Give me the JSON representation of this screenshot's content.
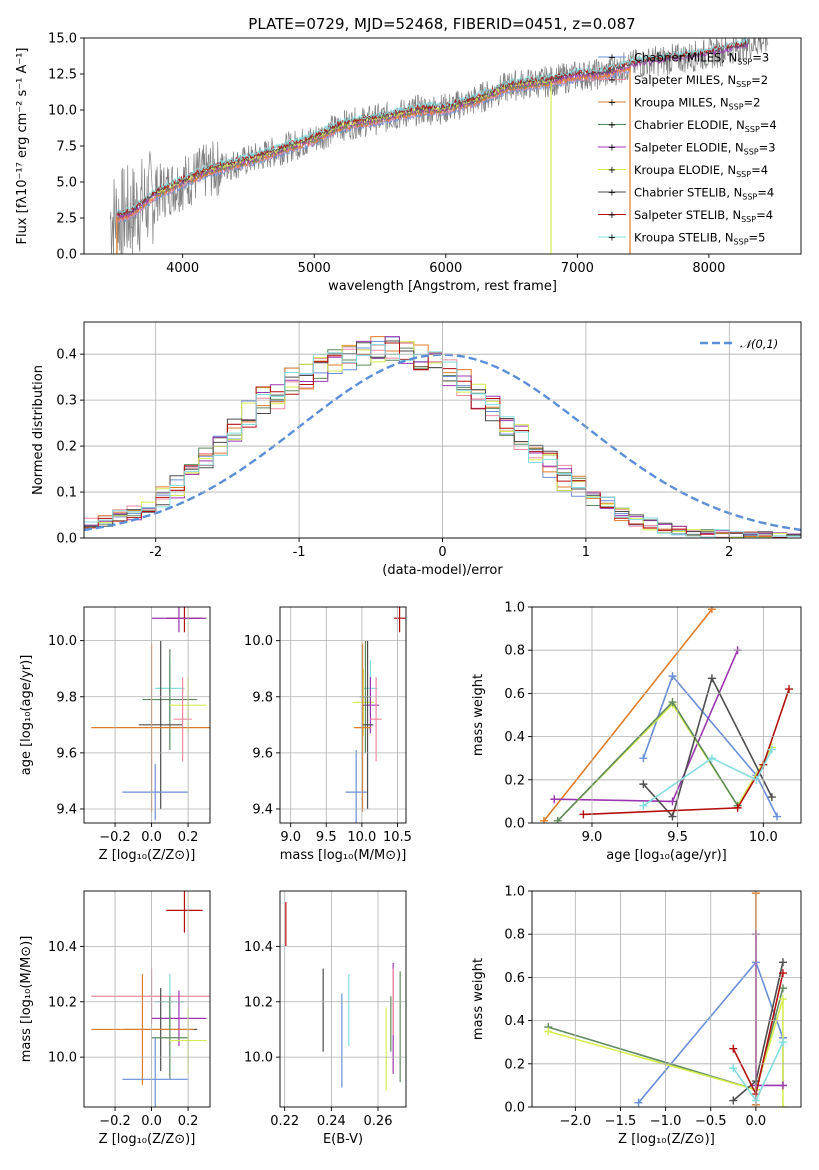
{
  "colors": {
    "Chabrier MILES": "#6a8fd8",
    "Salpeter MILES": "#f08aa0",
    "Kroupa MILES": "#e07b29",
    "Chabrier ELODIE": "#5e8a5e",
    "Salpeter ELODIE": "#9b38b0",
    "Kroupa ELODIE": "#d7ec52",
    "Chabrier STELIB": "#4d4d4d",
    "Salpeter STELIB": "#b30f0f",
    "Kroupa STELIB": "#84dde0",
    "data": "#808080",
    "normal": "#5a8fd8"
  },
  "chart_data": [
    {
      "id": "spectrum",
      "type": "line",
      "title": "PLATE=0729, MJD=52468, FIBERID=0451, z=0.087",
      "xlabel": "wavelength [Angstrom, rest frame]",
      "ylabel": "Flux [fλ10⁻¹⁷ erg cm⁻² s⁻¹ A⁻¹]",
      "xlim": [
        3250,
        8700
      ],
      "ylim": [
        0,
        15
      ],
      "xticks": [
        4000,
        5000,
        6000,
        7000,
        8000
      ],
      "yticks": [
        0.0,
        2.5,
        5.0,
        7.5,
        10.0,
        12.5,
        15.0
      ],
      "grid": false,
      "legend_position": "right",
      "series_data_trend": {
        "x": [
          3450,
          3600,
          3800,
          4000,
          4200,
          4500,
          4800,
          5000,
          5200,
          5500,
          5800,
          6000,
          6200,
          6500,
          6800,
          7000,
          7200,
          7400,
          7600,
          7800,
          8000,
          8200,
          8400
        ],
        "y": [
          2.5,
          2.8,
          4.2,
          5.0,
          5.8,
          6.5,
          7.4,
          8.0,
          8.9,
          9.4,
          10.0,
          10.1,
          10.6,
          11.7,
          12.0,
          12.4,
          12.5,
          13.1,
          13.4,
          13.6,
          13.9,
          14.3,
          14.8
        ]
      },
      "series": [
        {
          "name": "Chabrier MILES",
          "nssp": "3",
          "x_range": [
            3500,
            7400
          ]
        },
        {
          "name": "Salpeter MILES",
          "nssp": "2",
          "x_range": [
            3500,
            7400
          ]
        },
        {
          "name": "Kroupa MILES",
          "nssp": "2",
          "x_range": [
            3500,
            7400
          ]
        },
        {
          "name": "Chabrier ELODIE",
          "nssp": "4",
          "x_range": [
            3800,
            6800
          ]
        },
        {
          "name": "Salpeter ELODIE",
          "nssp": "3",
          "x_range": [
            3500,
            8300
          ]
        },
        {
          "name": "Kroupa ELODIE",
          "nssp": "4",
          "x_range": [
            3800,
            6800
          ]
        },
        {
          "name": "Chabrier STELIB",
          "nssp": "4",
          "x_range": [
            3500,
            8300
          ]
        },
        {
          "name": "Salpeter STELIB",
          "nssp": "4",
          "x_range": [
            3500,
            8300
          ]
        },
        {
          "name": "Kroupa STELIB",
          "nssp": "5",
          "x_range": [
            3500,
            8300
          ]
        }
      ]
    },
    {
      "id": "residuals",
      "type": "line",
      "xlabel": "(data-model)/error",
      "ylabel": "Normed distribution",
      "xlim": [
        -2.5,
        2.5
      ],
      "ylim": [
        0,
        0.47
      ],
      "xticks": [
        -2,
        -1,
        0,
        1,
        2
      ],
      "yticks": [
        0.0,
        0.1,
        0.2,
        0.3,
        0.4
      ],
      "grid": true,
      "legend_position": "top-right",
      "legend_label": "𝒩(0,1)",
      "bin_width": 0.1,
      "histogram_envelope": [
        0.03,
        0.04,
        0.05,
        0.055,
        0.07,
        0.09,
        0.11,
        0.14,
        0.17,
        0.2,
        0.23,
        0.27,
        0.3,
        0.31,
        0.34,
        0.35,
        0.37,
        0.38,
        0.39,
        0.4,
        0.41,
        0.41,
        0.4,
        0.39,
        0.38,
        0.36,
        0.34,
        0.31,
        0.28,
        0.25,
        0.22,
        0.19,
        0.16,
        0.13,
        0.11,
        0.09,
        0.07,
        0.05,
        0.04,
        0.03,
        0.02,
        0.015,
        0.012,
        0.01,
        0.008,
        0.006,
        0.005,
        0.004,
        0.003,
        0.002
      ]
    },
    {
      "id": "age_vs_Z",
      "type": "scatter",
      "xlabel": "Z [log₁₀(Z/Z⊙)]",
      "ylabel": "age  [log₁₀(age/yr)]",
      "xlim": [
        -0.37,
        0.32
      ],
      "ylim": [
        9.35,
        10.12
      ],
      "xticks": [
        -0.2,
        0.0,
        0.2
      ],
      "xtick_labels": [
        "−0.2",
        "0.0",
        "0.2"
      ],
      "yticks": [
        9.4,
        9.6,
        9.8,
        10.0
      ],
      "grid": true,
      "points": [
        {
          "series": "Salpeter STELIB",
          "x": 0.18,
          "xerr": 0.1,
          "y": 10.08,
          "yerr": 0.05
        },
        {
          "series": "Salpeter ELODIE",
          "x": 0.15,
          "xerr": 0.15,
          "y": 10.08,
          "yerr": 0.05
        },
        {
          "series": "Kroupa STELIB",
          "x": 0.1,
          "xerr": 0.08,
          "y": 9.83,
          "yerr": 0.1
        },
        {
          "series": "Chabrier ELODIE",
          "x": 0.1,
          "xerr": 0.15,
          "y": 9.79,
          "yerr": 0.18
        },
        {
          "series": "Kroupa ELODIE",
          "x": 0.2,
          "xerr": 0.1,
          "y": 9.77,
          "yerr": 0.1
        },
        {
          "series": "Chabrier STELIB",
          "x": 0.05,
          "xerr": 0.12,
          "y": 9.7,
          "yerr": 0.3
        },
        {
          "series": "Kroupa MILES",
          "x": 0.0,
          "xerr": 0.33,
          "y": 9.69,
          "yerr": 0.3
        },
        {
          "series": "Salpeter MILES",
          "x": 0.17,
          "xerr": 0.05,
          "y": 9.72,
          "yerr": 0.15
        },
        {
          "series": "Chabrier MILES",
          "x": 0.02,
          "xerr": 0.18,
          "y": 9.46,
          "yerr": 0.1
        }
      ]
    },
    {
      "id": "age_vs_mass",
      "type": "scatter",
      "xlabel": "mass [log₁₀(M/M⊙)]",
      "xlim": [
        8.85,
        10.62
      ],
      "ylim": [
        9.35,
        10.12
      ],
      "xticks": [
        9.0,
        9.5,
        10.0,
        10.5
      ],
      "yticks": [
        9.4,
        9.6,
        9.8,
        10.0
      ],
      "grid": true,
      "points": [
        {
          "series": "Salpeter STELIB",
          "x": 10.53,
          "xerr": 0.08,
          "y": 10.08,
          "yerr": 0.05
        },
        {
          "series": "Kroupa STELIB",
          "x": 10.12,
          "xerr": 0.1,
          "y": 9.83,
          "yerr": 0.1
        },
        {
          "series": "Kroupa ELODIE",
          "x": 10.02,
          "xerr": 0.15,
          "y": 9.78,
          "yerr": 0.12
        },
        {
          "series": "Salpeter ELODIE",
          "x": 10.12,
          "xerr": 0.12,
          "y": 9.77,
          "yerr": 0.1
        },
        {
          "series": "Chabrier ELODIE",
          "x": 10.05,
          "xerr": 0.08,
          "y": 9.8,
          "yerr": 0.2
        },
        {
          "series": "Chabrier STELIB",
          "x": 10.08,
          "xerr": 0.08,
          "y": 9.7,
          "yerr": 0.3
        },
        {
          "series": "Kroupa MILES",
          "x": 10.01,
          "xerr": 0.12,
          "y": 9.69,
          "yerr": 0.3
        },
        {
          "series": "Salpeter MILES",
          "x": 10.2,
          "xerr": 0.08,
          "y": 9.72,
          "yerr": 0.15
        },
        {
          "series": "Chabrier MILES",
          "x": 9.92,
          "xerr": 0.15,
          "y": 9.46,
          "yerr": 0.15
        }
      ]
    },
    {
      "id": "weight_vs_age",
      "type": "line",
      "xlabel": "age  [log₁₀(age/yr)]",
      "ylabel": "mass weight",
      "xlim": [
        8.65,
        10.22
      ],
      "ylim": [
        0,
        1.0
      ],
      "xticks": [
        9.0,
        9.5,
        10.0
      ],
      "yticks": [
        0.0,
        0.2,
        0.4,
        0.6,
        0.8,
        1.0
      ],
      "grid": true,
      "series": [
        {
          "name": "Kroupa MILES",
          "x": [
            8.72,
            9.7
          ],
          "y": [
            0.01,
            0.99
          ]
        },
        {
          "name": "Chabrier MILES",
          "x": [
            9.3,
            9.47,
            9.96,
            10.08
          ],
          "y": [
            0.3,
            0.68,
            0.22,
            0.03
          ]
        },
        {
          "name": "Salpeter ELODIE",
          "x": [
            8.78,
            9.47,
            9.85
          ],
          "y": [
            0.11,
            0.1,
            0.8
          ]
        },
        {
          "name": "Kroupa ELODIE",
          "x": [
            8.8,
            9.47,
            9.85,
            10.05
          ],
          "y": [
            0.01,
            0.55,
            0.08,
            0.35
          ]
        },
        {
          "name": "Chabrier ELODIE",
          "x": [
            8.8,
            9.47,
            9.85
          ],
          "y": [
            0.01,
            0.56,
            0.08
          ]
        },
        {
          "name": "Chabrier STELIB",
          "x": [
            9.3,
            9.47,
            9.7,
            10.05
          ],
          "y": [
            0.18,
            0.03,
            0.67,
            0.12
          ]
        },
        {
          "name": "Salpeter STELIB",
          "x": [
            8.95,
            9.85,
            10.0,
            10.15
          ],
          "y": [
            0.04,
            0.07,
            0.27,
            0.62
          ]
        },
        {
          "name": "Kroupa STELIB",
          "x": [
            9.3,
            9.7,
            9.96,
            10.05
          ],
          "y": [
            0.08,
            0.3,
            0.2,
            0.34
          ]
        }
      ]
    },
    {
      "id": "mass_vs_Z",
      "type": "scatter",
      "xlabel": "Z [log₁₀(Z/Z⊙)]",
      "ylabel": "mass [log₁₀(M/M⊙)]",
      "xlim": [
        -0.37,
        0.32
      ],
      "ylim": [
        9.82,
        10.6
      ],
      "xticks": [
        -0.2,
        0.0,
        0.2
      ],
      "xtick_labels": [
        "−0.2",
        "0.0",
        "0.2"
      ],
      "yticks": [
        10.0,
        10.2,
        10.4
      ],
      "grid": true,
      "points": [
        {
          "series": "Salpeter STELIB",
          "x": 0.18,
          "xerr": 0.1,
          "y": 10.53,
          "yerr": 0.08
        },
        {
          "series": "Salpeter MILES",
          "x": 0.0,
          "xerr": 0.33,
          "y": 10.22,
          "yerr": 0.1
        },
        {
          "series": "Kroupa STELIB",
          "x": 0.1,
          "xerr": 0.08,
          "y": 10.2,
          "yerr": 0.1
        },
        {
          "series": "Salpeter ELODIE",
          "x": 0.15,
          "xerr": 0.15,
          "y": 10.14,
          "yerr": 0.1
        },
        {
          "series": "Chabrier STELIB",
          "x": 0.05,
          "xerr": 0.2,
          "y": 10.1,
          "yerr": 0.15
        },
        {
          "series": "Kroupa MILES",
          "x": -0.05,
          "xerr": 0.28,
          "y": 10.1,
          "yerr": 0.2
        },
        {
          "series": "Chabrier ELODIE",
          "x": 0.1,
          "xerr": 0.1,
          "y": 10.07,
          "yerr": 0.15
        },
        {
          "series": "Kroupa ELODIE",
          "x": 0.2,
          "xerr": 0.1,
          "y": 10.06,
          "yerr": 0.12
        },
        {
          "series": "Chabrier MILES",
          "x": 0.02,
          "xerr": 0.18,
          "y": 9.92,
          "yerr": 0.15
        }
      ]
    },
    {
      "id": "mass_vs_ebv",
      "type": "scatter",
      "xlabel": "E(B-V)",
      "xlim": [
        0.218,
        0.272
      ],
      "ylim": [
        9.82,
        10.6
      ],
      "xticks": [
        0.22,
        0.24,
        0.26
      ],
      "yticks": [
        10.0,
        10.2,
        10.4
      ],
      "grid": true,
      "points": [
        {
          "series": "Salpeter STELIB",
          "x": 0.2205,
          "y": 10.48,
          "yerr": 0.08
        },
        {
          "series": "Chabrier STELIB",
          "x": 0.2365,
          "y": 10.17,
          "yerr": 0.15
        },
        {
          "series": "Chabrier MILES",
          "x": 0.2445,
          "y": 10.06,
          "yerr": 0.17
        },
        {
          "series": "Kroupa STELIB",
          "x": 0.2475,
          "y": 10.17,
          "yerr": 0.13
        },
        {
          "series": "Kroupa ELODIE",
          "x": 0.2635,
          "y": 10.03,
          "yerr": 0.15
        },
        {
          "series": "Chabrier ELODIE",
          "x": 0.2655,
          "y": 10.12,
          "yerr": 0.1
        },
        {
          "series": "Salpeter ELODIE",
          "x": 0.2665,
          "y": 10.14,
          "yerr": 0.2
        },
        {
          "series": "Salpeter MILES",
          "x": 0.2665,
          "y": 10.2,
          "yerr": 0.12
        },
        {
          "series": "Chabrier ELODIE",
          "x": 0.2695,
          "y": 10.11,
          "yerr": 0.2
        }
      ]
    },
    {
      "id": "weight_vs_Z",
      "type": "line",
      "xlabel": "Z [log₁₀(Z/Z⊙)]",
      "ylabel": "mass weight",
      "xlim": [
        -2.48,
        0.5
      ],
      "ylim": [
        0,
        1.0
      ],
      "xticks": [
        -2.0,
        -1.5,
        -1.0,
        -0.5,
        0.0
      ],
      "xtick_labels": [
        "−2.0",
        "−1.5",
        "−1.0",
        "−0.5",
        "0.0"
      ],
      "yticks": [
        0.0,
        0.2,
        0.4,
        0.6,
        0.8,
        1.0
      ],
      "grid": true,
      "series": [
        {
          "name": "Kroupa MILES",
          "x": [
            0.0,
            0.0
          ],
          "y": [
            0.01,
            0.99
          ]
        },
        {
          "name": "Chabrier MILES",
          "x": [
            -1.3,
            0.0,
            0.3,
            0.3
          ],
          "y": [
            0.02,
            0.67,
            0.32,
            0.1
          ]
        },
        {
          "name": "Chabrier ELODIE",
          "x": [
            -2.3,
            0.0,
            0.3
          ],
          "y": [
            0.37,
            0.08,
            0.55
          ]
        },
        {
          "name": "Kroupa ELODIE",
          "x": [
            -2.3,
            0.0,
            0.3,
            0.3
          ],
          "y": [
            0.35,
            0.08,
            0.5,
            0.0
          ]
        },
        {
          "name": "Salpeter ELODIE",
          "x": [
            0.0,
            0.0,
            0.3
          ],
          "y": [
            0.8,
            0.1,
            0.1
          ]
        },
        {
          "name": "Chabrier STELIB",
          "x": [
            -0.25,
            0.0,
            0.3
          ],
          "y": [
            0.03,
            0.12,
            0.67
          ]
        },
        {
          "name": "Salpeter STELIB",
          "x": [
            -0.25,
            0.0,
            0.3
          ],
          "y": [
            0.27,
            0.06,
            0.62
          ]
        },
        {
          "name": "Kroupa STELIB",
          "x": [
            -0.25,
            0.0,
            0.3
          ],
          "y": [
            0.18,
            0.03,
            0.3
          ]
        }
      ]
    }
  ]
}
